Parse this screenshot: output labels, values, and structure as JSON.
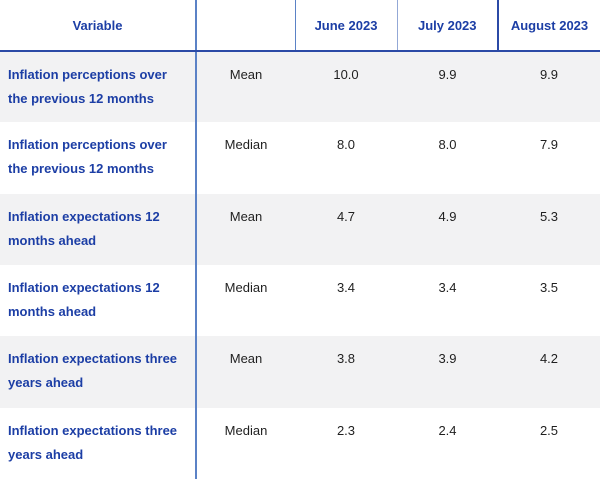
{
  "chart_data": {
    "type": "table",
    "title": "",
    "columns": [
      "Variable",
      "",
      "June 2023",
      "July 2023",
      "August 2023"
    ],
    "rows": [
      {
        "variable": "Inflation perceptions over the previous 12 months",
        "statistic": "Mean",
        "values": [
          "10.0",
          "9.9",
          "9.9"
        ]
      },
      {
        "variable": "Inflation perceptions over the previous 12 months",
        "statistic": "Median",
        "values": [
          "8.0",
          "8.0",
          "7.9"
        ]
      },
      {
        "variable": "Inflation expectations 12 months ahead",
        "statistic": "Mean",
        "values": [
          "4.7",
          "4.9",
          "5.3"
        ]
      },
      {
        "variable": "Inflation expectations 12 months ahead",
        "statistic": "Median",
        "values": [
          "3.4",
          "3.4",
          "3.5"
        ]
      },
      {
        "variable": "Inflation expectations three years ahead",
        "statistic": "Mean",
        "values": [
          "3.8",
          "3.9",
          "4.2"
        ]
      },
      {
        "variable": "Inflation expectations three years ahead",
        "statistic": "Median",
        "values": [
          "2.3",
          "2.4",
          "2.5"
        ]
      }
    ]
  },
  "table": {
    "columns": [
      {
        "label": "Variable"
      },
      {
        "label": ""
      },
      {
        "label": "June 2023"
      },
      {
        "label": "July 2023"
      },
      {
        "label": "August 2023"
      }
    ]
  },
  "colors": {
    "brand_blue": "#1c3ea5",
    "border_mid": "#5b82c6",
    "border_light": "#93a8d6",
    "border_dark": "#2b4aa6",
    "stripe_gray": "#f2f2f3",
    "text_dark": "#1f1f1f"
  }
}
